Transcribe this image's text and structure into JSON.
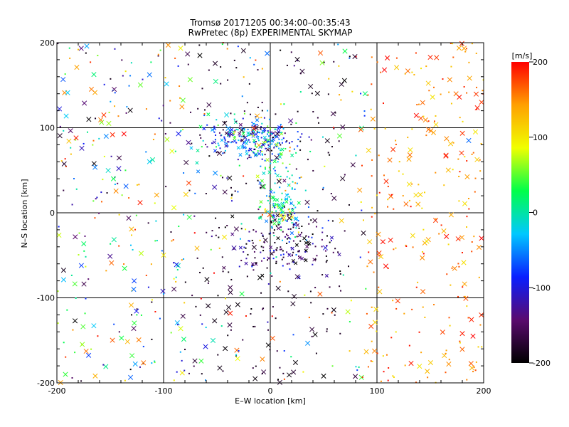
{
  "chart_data": {
    "type": "scatter",
    "title": "Tromsø 20171205 00:34:00–00:35:43",
    "subtitle": "RwPretec (8p) EXPERIMENTAL SKYMAP",
    "xlabel": "E–W location [km]",
    "ylabel": "N–S location [km]",
    "xlim": [
      -200,
      200
    ],
    "ylim": [
      -200,
      200
    ],
    "x_ticks": [
      "-200",
      "-100",
      "0",
      "100",
      "200"
    ],
    "y_ticks": [
      "-200",
      "-100",
      "0",
      "100",
      "200"
    ],
    "grid": true,
    "colorbar": {
      "label": "[m/s]",
      "range": [
        -200,
        200
      ],
      "ticks": [
        "200",
        "100",
        "0",
        "-100",
        "-200"
      ],
      "palette": [
        "#000000",
        "#5a0a6e",
        "#0a1eff",
        "#00c8ff",
        "#00ff4a",
        "#f0ff00",
        "#ffa000",
        "#ff0000"
      ]
    },
    "markers": [
      "dot",
      "cross"
    ],
    "clusters": [
      {
        "x": -20,
        "y": 88,
        "spread_x": 22,
        "spread_y": 12,
        "velocity": -60,
        "count": 260
      },
      {
        "x": 10,
        "y": 5,
        "spread_x": 10,
        "spread_y": 12,
        "velocity": 20,
        "count": 90
      },
      {
        "x": 12,
        "y": -38,
        "spread_x": 25,
        "spread_y": 18,
        "velocity": -150,
        "count": 170
      },
      {
        "x": 10,
        "y": 40,
        "spread_x": 12,
        "spread_y": 25,
        "velocity": -10,
        "count": 70
      }
    ],
    "points": [
      {
        "x": -172,
        "y": 196,
        "v": -40,
        "m": "cross"
      },
      {
        "x": -66,
        "y": 185,
        "v": -200,
        "m": "cross"
      },
      {
        "x": 70,
        "y": 190,
        "v": 30,
        "m": "cross"
      },
      {
        "x": 107,
        "y": 168,
        "v": 200,
        "m": "cross"
      },
      {
        "x": 198,
        "y": 130,
        "v": 180,
        "m": "cross"
      },
      {
        "x": -156,
        "y": 115,
        "v": 180,
        "m": "cross"
      },
      {
        "x": -182,
        "y": 88,
        "v": 190,
        "m": "cross"
      },
      {
        "x": 186,
        "y": 85,
        "v": -60,
        "m": "cross"
      },
      {
        "x": -147,
        "y": 40,
        "v": 30,
        "m": "cross"
      },
      {
        "x": -142,
        "y": 52,
        "v": -110,
        "m": "cross"
      },
      {
        "x": -122,
        "y": 12,
        "v": 190,
        "m": "cross"
      },
      {
        "x": 112,
        "y": 62,
        "v": 160,
        "m": "cross"
      },
      {
        "x": 130,
        "y": 63,
        "v": 140,
        "m": "cross"
      },
      {
        "x": 198,
        "y": -30,
        "v": 200,
        "m": "cross"
      },
      {
        "x": -128,
        "y": -90,
        "v": -60,
        "m": "cross"
      },
      {
        "x": -183,
        "y": -127,
        "v": -200,
        "m": "cross"
      },
      {
        "x": -128,
        "y": -136,
        "v": -150,
        "m": "cross"
      },
      {
        "x": -192,
        "y": -190,
        "v": 40,
        "m": "cross"
      },
      {
        "x": 180,
        "y": -142,
        "v": 190,
        "m": "cross"
      },
      {
        "x": 190,
        "y": -145,
        "v": 200,
        "m": "cross"
      },
      {
        "x": 132,
        "y": -177,
        "v": 190,
        "m": "cross"
      },
      {
        "x": 50,
        "y": -192,
        "v": -200,
        "m": "cross"
      }
    ]
  }
}
